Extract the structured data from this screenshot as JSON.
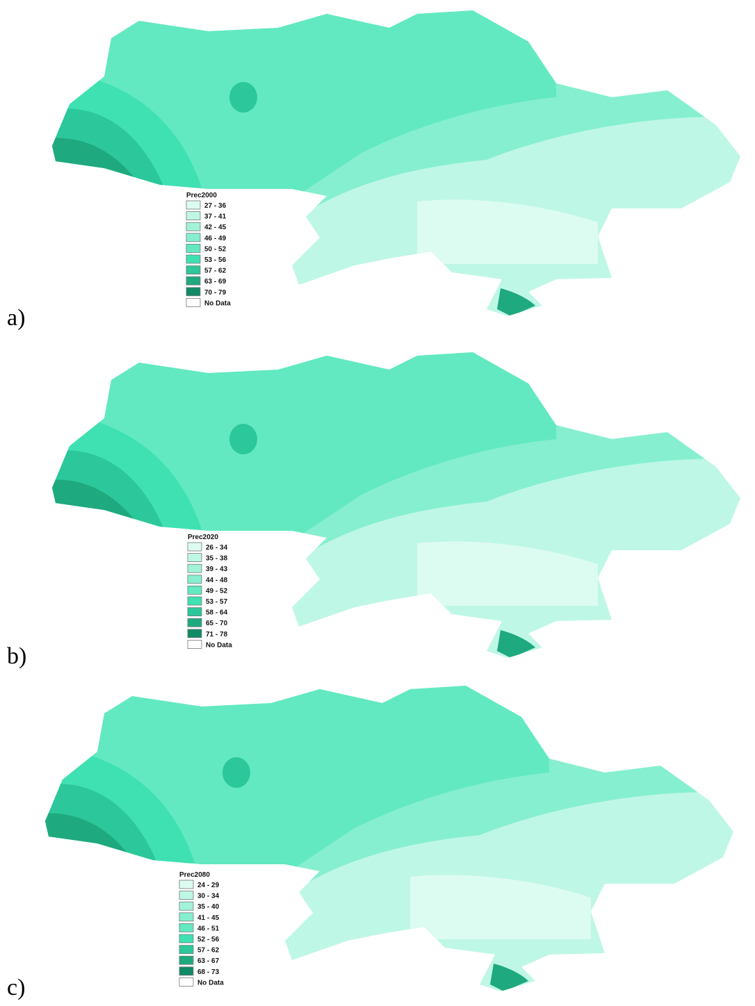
{
  "panels": [
    {
      "label": "a)",
      "legend": {
        "title": "Prec2000",
        "classes": [
          "27 - 36",
          "37 - 41",
          "42 - 45",
          "46 - 49",
          "50 - 52",
          "53 - 56",
          "57 - 62",
          "63 - 69",
          "70 - 79",
          "No Data"
        ],
        "colors": [
          "#dcfbf1",
          "#bff7e6",
          "#a2f3da",
          "#86efcf",
          "#62e9c1",
          "#3fe1b2",
          "#2cc79a",
          "#1fa97f",
          "#128a66",
          "#ffffff"
        ]
      }
    },
    {
      "label": "b)",
      "legend": {
        "title": "Prec2020",
        "classes": [
          "26 - 34",
          "35 - 38",
          "39 - 43",
          "44 - 48",
          "49 - 52",
          "53 - 57",
          "58 - 64",
          "65 - 70",
          "71 - 78",
          "No Data"
        ],
        "colors": [
          "#dcfbf1",
          "#bff7e6",
          "#a2f3da",
          "#86efcf",
          "#62e9c1",
          "#3fe1b2",
          "#2cc79a",
          "#1fa97f",
          "#128a66",
          "#ffffff"
        ]
      }
    },
    {
      "label": "c)",
      "legend": {
        "title": "Prec2080",
        "classes": [
          "24 - 29",
          "30 - 34",
          "35 - 40",
          "41 - 45",
          "46 - 51",
          "52 - 56",
          "57 - 62",
          "63 - 67",
          "68 - 73",
          "No Data"
        ],
        "colors": [
          "#dcfbf1",
          "#bff7e6",
          "#a2f3da",
          "#86efcf",
          "#62e9c1",
          "#3fe1b2",
          "#2cc79a",
          "#1fa97f",
          "#128a66",
          "#ffffff"
        ]
      }
    }
  ]
}
